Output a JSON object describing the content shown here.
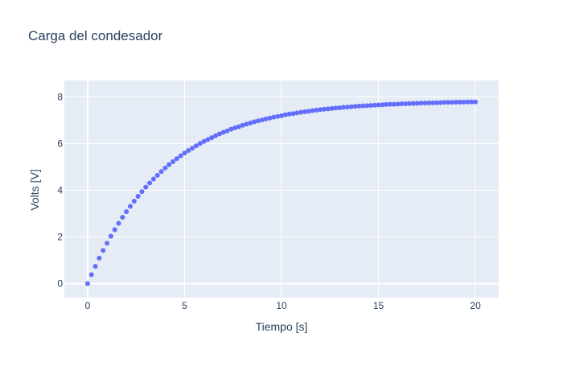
{
  "chart_data": {
    "type": "scatter",
    "title": "Carga del condesador",
    "xlabel": "Tiempo [s]",
    "ylabel": "Volts [V]",
    "xlim": [
      -1.2,
      21.2
    ],
    "ylim": [
      -0.6,
      8.7
    ],
    "xticks": [
      0,
      5,
      10,
      15,
      20
    ],
    "yticks": [
      0,
      2,
      4,
      6,
      8
    ],
    "grid": true,
    "legend": "none",
    "colors": {
      "marker": "#636efa",
      "plot_bg": "#e5ecf6",
      "grid": "#ffffff",
      "text": "#2a3f5f"
    },
    "series": [
      {
        "x": [
          0,
          0.2,
          0.4,
          0.6,
          0.8,
          1.0,
          1.2,
          1.4,
          1.6,
          1.8,
          2.0,
          2.2,
          2.4,
          2.6,
          2.8,
          3.0,
          3.2,
          3.4,
          3.6,
          3.8,
          4.0,
          4.2,
          4.4,
          4.6,
          4.8,
          5.0,
          5.2,
          5.4,
          5.6,
          5.8,
          6.0,
          6.2,
          6.4,
          6.6,
          6.8,
          7.0,
          7.2,
          7.4,
          7.6,
          7.8,
          8.0,
          8.2,
          8.4,
          8.6,
          8.8,
          9.0,
          9.2,
          9.4,
          9.6,
          9.8,
          10.0,
          10.2,
          10.4,
          10.6,
          10.8,
          11.0,
          11.2,
          11.4,
          11.6,
          11.8,
          12.0,
          12.2,
          12.4,
          12.6,
          12.8,
          13.0,
          13.2,
          13.4,
          13.6,
          13.8,
          14.0,
          14.2,
          14.4,
          14.6,
          14.8,
          15.0,
          15.2,
          15.4,
          15.6,
          15.8,
          16.0,
          16.2,
          16.4,
          16.6,
          16.8,
          17.0,
          17.2,
          17.4,
          17.6,
          17.8,
          18.0,
          18.2,
          18.4,
          18.6,
          18.8,
          19.0,
          19.2,
          19.4,
          19.6,
          19.8,
          20.0
        ],
        "y": [
          0.0,
          0.38,
          0.74,
          1.09,
          1.42,
          1.73,
          2.03,
          2.31,
          2.58,
          2.84,
          3.08,
          3.31,
          3.53,
          3.74,
          3.94,
          4.13,
          4.31,
          4.48,
          4.64,
          4.8,
          4.95,
          5.09,
          5.22,
          5.35,
          5.47,
          5.59,
          5.7,
          5.8,
          5.9,
          6.0,
          6.09,
          6.17,
          6.25,
          6.33,
          6.41,
          6.48,
          6.54,
          6.61,
          6.67,
          6.72,
          6.78,
          6.83,
          6.88,
          6.93,
          6.97,
          7.01,
          7.05,
          7.09,
          7.13,
          7.16,
          7.19,
          7.23,
          7.26,
          7.28,
          7.31,
          7.34,
          7.36,
          7.38,
          7.41,
          7.43,
          7.45,
          7.47,
          7.48,
          7.5,
          7.52,
          7.53,
          7.55,
          7.56,
          7.57,
          7.59,
          7.6,
          7.61,
          7.62,
          7.63,
          7.64,
          7.65,
          7.66,
          7.67,
          7.68,
          7.68,
          7.69,
          7.7,
          7.7,
          7.71,
          7.72,
          7.72,
          7.73,
          7.73,
          7.74,
          7.74,
          7.75,
          7.75,
          7.76,
          7.76,
          7.76,
          7.77,
          7.77,
          7.77,
          7.78,
          7.78,
          7.78
        ]
      }
    ]
  }
}
